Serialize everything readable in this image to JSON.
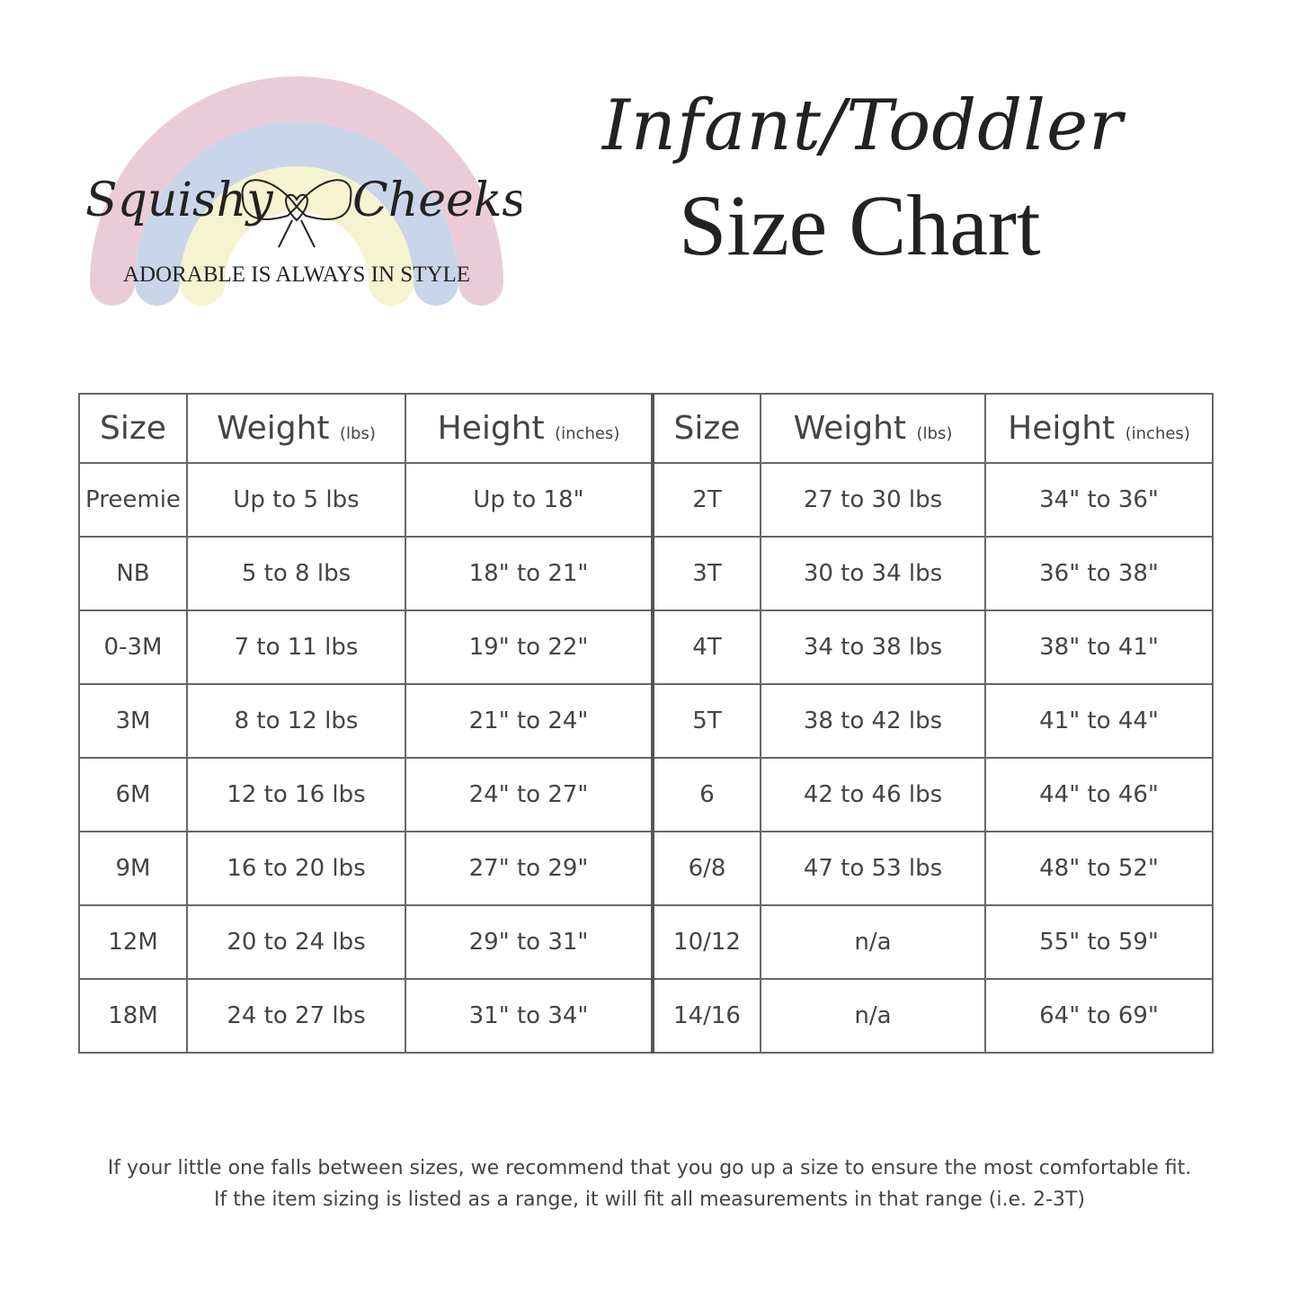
{
  "logo": {
    "brand_left": "Squishy",
    "brand_right": "Cheeks",
    "tagline": "ADORABLE IS ALWAYS IN STYLE",
    "colors": {
      "pink": "#e3bccd",
      "blue": "#b8c8e2",
      "yellow": "#f3efc2"
    }
  },
  "title": {
    "script": "Infant/Toddler",
    "main": "Size Chart"
  },
  "table": {
    "headers": [
      {
        "label": "Size",
        "unit": ""
      },
      {
        "label": "Weight",
        "unit": "(lbs)"
      },
      {
        "label": "Height",
        "unit": "(inches)"
      },
      {
        "label": "Size",
        "unit": ""
      },
      {
        "label": "Weight",
        "unit": "(lbs)"
      },
      {
        "label": "Height",
        "unit": "(inches)"
      }
    ],
    "rows": [
      [
        "Preemie",
        "Up to 5 lbs",
        "Up to 18\"",
        "2T",
        "27 to 30 lbs",
        "34\" to 36\""
      ],
      [
        "NB",
        "5 to 8 lbs",
        "18\" to 21\"",
        "3T",
        "30 to 34 lbs",
        "36\" to 38\""
      ],
      [
        "0-3M",
        "7 to 11 lbs",
        "19\" to 22\"",
        "4T",
        "34 to 38 lbs",
        "38\" to 41\""
      ],
      [
        "3M",
        "8 to 12 lbs",
        "21\" to 24\"",
        "5T",
        "38 to 42 lbs",
        "41\" to 44\""
      ],
      [
        "6M",
        "12 to 16 lbs",
        "24\" to 27\"",
        "6",
        "42 to 46 lbs",
        "44\" to 46\""
      ],
      [
        "9M",
        "16 to 20 lbs",
        "27\" to 29\"",
        "6/8",
        "47 to 53 lbs",
        "48\" to 52\""
      ],
      [
        "12M",
        "20 to 24 lbs",
        "29\" to 31\"",
        "10/12",
        "n/a",
        "55\" to 59\""
      ],
      [
        "18M",
        "24 to 27 lbs",
        "31\" to 34\"",
        "14/16",
        "n/a",
        "64\" to 69\""
      ]
    ]
  },
  "footer": {
    "line1": "If your little one falls between sizes, we recommend that you go up a size to ensure the most comfortable fit.",
    "line2": "If the item sizing is listed as a range, it will fit all measurements in that range (i.e. 2-3T)"
  }
}
